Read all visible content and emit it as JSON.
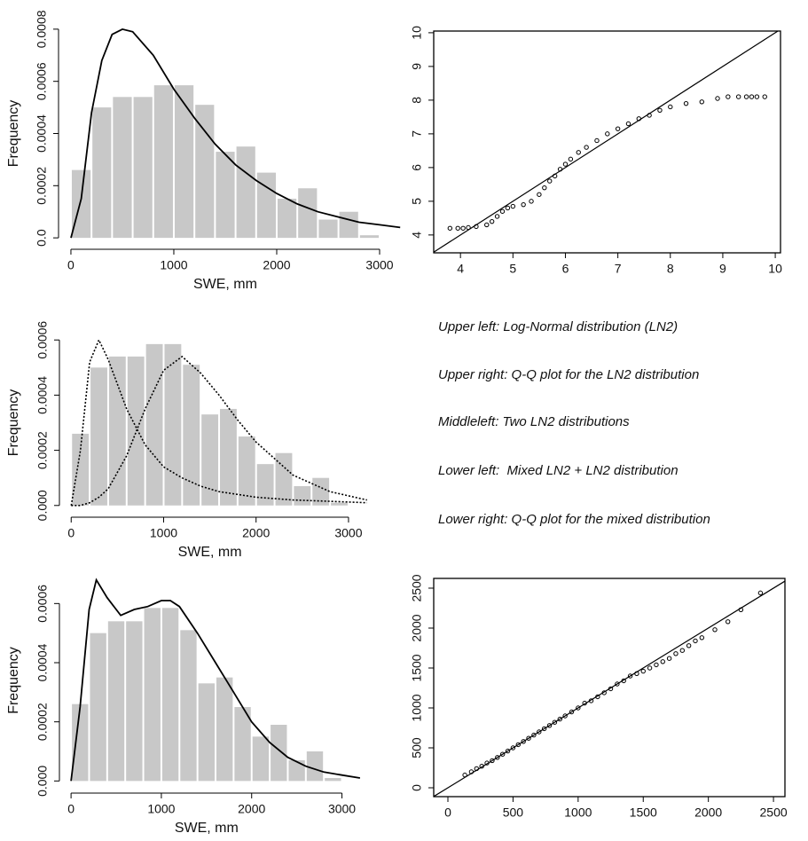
{
  "chart_data": [
    {
      "type": "histogram",
      "x_label": "SWE, mm",
      "y_label": "Frequency",
      "color": "#c8c8c8",
      "bins": [
        0,
        200,
        400,
        600,
        800,
        1000,
        1200,
        1400,
        1600,
        1800,
        2000,
        2200,
        2400,
        2600,
        2800,
        3000
      ],
      "values": [
        0.00026,
        0.0005,
        0.00054,
        0.00054,
        0.000585,
        0.000585,
        0.00051,
        0.00033,
        0.00035,
        0.00025,
        0.00015,
        0.00019,
        7e-05,
        0.0001,
        1e-05
      ],
      "series": [
        {
          "color": "#000000",
          "style": "solid",
          "x": [
            0,
            100,
            200,
            300,
            400,
            500,
            600,
            800,
            1000,
            1200,
            1400,
            1600,
            1800,
            2000,
            2200,
            2400,
            2600,
            2800,
            3000,
            3200
          ],
          "values": [
            0,
            0.00015,
            0.00048,
            0.00068,
            0.00078,
            0.0008,
            0.00079,
            0.0007,
            0.00057,
            0.00046,
            0.00036,
            0.00028,
            0.00022,
            0.00017,
            0.00013,
            0.0001,
            8e-05,
            6e-05,
            5e-05,
            4e-05
          ]
        }
      ],
      "xlim": [
        -60,
        3250
      ],
      "xticks": [
        0,
        1000,
        2000,
        3000
      ],
      "ylim": [
        -2e-05,
        0.00082
      ],
      "yticks": [
        {
          "value": 0,
          "label": "0.0"
        },
        0.0002,
        0.0004,
        0.0006,
        0.0008
      ]
    },
    {
      "type": "histogram",
      "x_label": "SWE, mm",
      "y_label": "Frequency",
      "color": "#c8c8c8",
      "bins": [
        0,
        200,
        400,
        600,
        800,
        1000,
        1200,
        1400,
        1600,
        1800,
        2000,
        2200,
        2400,
        2600,
        2800,
        3000
      ],
      "values": [
        0.00026,
        0.0005,
        0.00054,
        0.00054,
        0.000585,
        0.000585,
        0.00051,
        0.00033,
        0.00035,
        0.00025,
        0.00015,
        0.00019,
        7e-05,
        0.0001,
        1e-05
      ],
      "series": [
        {
          "color": "#000000",
          "style": "dotted",
          "x": [
            0,
            100,
            200,
            300,
            400,
            600,
            800,
            1000,
            1200,
            1400,
            1600,
            1800,
            2000,
            2400,
            2800,
            3200
          ],
          "values": [
            0,
            0.0002,
            0.00052,
            0.0006,
            0.00053,
            0.00035,
            0.00022,
            0.00014,
            0.0001,
            7e-05,
            5e-05,
            4e-05,
            3e-05,
            2e-05,
            1.5e-05,
            1e-05
          ]
        },
        {
          "color": "#000000",
          "style": "dotted",
          "x": [
            0,
            100,
            200,
            300,
            400,
            600,
            800,
            1000,
            1200,
            1400,
            1600,
            1800,
            2000,
            2400,
            2800,
            3200
          ],
          "values": [
            0,
            0,
            1e-05,
            3e-05,
            6e-05,
            0.00018,
            0.00035,
            0.00049,
            0.00054,
            0.00048,
            0.0004,
            0.00031,
            0.00023,
            0.00011,
            5e-05,
            2e-05
          ]
        }
      ],
      "xlim": [
        -60,
        3250
      ],
      "xticks": [
        0,
        1000,
        2000,
        3000
      ],
      "ylim": [
        -2e-05,
        0.00062
      ],
      "yticks": [
        {
          "value": 0,
          "label": "0.000"
        },
        0.0002,
        0.0004,
        0.0006
      ]
    },
    {
      "type": "histogram",
      "x_label": "SWE, mm",
      "y_label": "Frequency",
      "color": "#c8c8c8",
      "bins": [
        0,
        200,
        400,
        600,
        800,
        1000,
        1200,
        1400,
        1600,
        1800,
        2000,
        2200,
        2400,
        2600,
        2800,
        3000
      ],
      "values": [
        0.00026,
        0.0005,
        0.00054,
        0.00054,
        0.000585,
        0.000585,
        0.00051,
        0.00033,
        0.00035,
        0.00025,
        0.00015,
        0.00019,
        7e-05,
        0.0001,
        1e-05
      ],
      "series": [
        {
          "color": "#000000",
          "style": "solid",
          "x": [
            0,
            100,
            200,
            280,
            400,
            550,
            700,
            850,
            1000,
            1100,
            1200,
            1400,
            1600,
            1800,
            2000,
            2200,
            2400,
            2600,
            2800,
            3000,
            3200
          ],
          "values": [
            0,
            0.00025,
            0.00058,
            0.00068,
            0.00062,
            0.00056,
            0.00058,
            0.00059,
            0.00061,
            0.00061,
            0.00059,
            0.0005,
            0.0004,
            0.0003,
            0.0002,
            0.00013,
            8e-05,
            5e-05,
            3e-05,
            2e-05,
            1e-05
          ]
        }
      ],
      "xlim": [
        -60,
        3250
      ],
      "xticks": [
        0,
        1000,
        2000,
        3000
      ],
      "ylim": [
        -2e-05,
        0.0007
      ],
      "yticks": [
        {
          "value": 0,
          "label": "0.000"
        },
        0.0002,
        0.0004,
        0.0006
      ]
    },
    {
      "type": "scatter",
      "diagonal": true,
      "color": "#000000",
      "x": [
        3.8,
        3.95,
        4.05,
        4.15,
        4.3,
        4.5,
        4.6,
        4.7,
        4.8,
        4.9,
        5.0,
        5.2,
        5.35,
        5.5,
        5.6,
        5.7,
        5.8,
        5.9,
        6.0,
        6.1,
        6.25,
        6.4,
        6.6,
        6.8,
        7.0,
        7.2,
        7.4,
        7.6,
        7.8,
        8.0,
        8.3,
        8.6,
        8.9,
        9.1,
        9.3,
        9.45,
        9.55,
        9.65,
        9.8
      ],
      "values": [
        4.2,
        4.2,
        4.2,
        4.22,
        4.25,
        4.3,
        4.4,
        4.55,
        4.7,
        4.8,
        4.85,
        4.9,
        5.0,
        5.2,
        5.4,
        5.6,
        5.75,
        5.95,
        6.1,
        6.25,
        6.45,
        6.6,
        6.8,
        7.0,
        7.15,
        7.3,
        7.45,
        7.55,
        7.7,
        7.8,
        7.9,
        7.95,
        8.05,
        8.1,
        8.1,
        8.1,
        8.1,
        8.1,
        8.1
      ],
      "xlim": [
        3.49,
        10.1
      ],
      "xticks": [
        4,
        5,
        6,
        7,
        8,
        9,
        10
      ],
      "ylim": [
        3.47,
        10.05
      ],
      "yticks": [
        4,
        5,
        6,
        7,
        8,
        9,
        10
      ]
    },
    {
      "type": "scatter",
      "diagonal": true,
      "color": "#000000",
      "x": [
        130,
        180,
        220,
        260,
        300,
        340,
        380,
        420,
        460,
        500,
        540,
        580,
        620,
        660,
        700,
        740,
        780,
        820,
        860,
        900,
        950,
        1000,
        1050,
        1100,
        1150,
        1200,
        1250,
        1300,
        1350,
        1400,
        1450,
        1500,
        1550,
        1600,
        1650,
        1700,
        1750,
        1800,
        1850,
        1900,
        1950,
        2050,
        2150,
        2250,
        2400
      ],
      "values": [
        160,
        200,
        240,
        270,
        310,
        340,
        380,
        420,
        460,
        500,
        540,
        580,
        620,
        660,
        700,
        740,
        780,
        820,
        860,
        900,
        950,
        1000,
        1060,
        1090,
        1140,
        1190,
        1240,
        1300,
        1340,
        1400,
        1430,
        1460,
        1500,
        1540,
        1580,
        1620,
        1680,
        1720,
        1780,
        1840,
        1880,
        1980,
        2080,
        2230,
        2440
      ],
      "xlim": [
        -109,
        2588
      ],
      "xticks": [
        0,
        500,
        1000,
        1500,
        2000,
        2500
      ],
      "ylim": [
        -111,
        2622
      ],
      "yticks": [
        0,
        500,
        1000,
        1500,
        2000,
        2500
      ]
    }
  ],
  "captions": [
    "Upper left: Log-Normal distribution (LN2)",
    "Upper right: Q-Q plot for the LN2 distribution",
    "Middleleft: Two LN2 distributions",
    "Lower left:  Mixed LN2 + LN2 distribution",
    "Lower right: Q-Q plot for the mixed distribution"
  ]
}
